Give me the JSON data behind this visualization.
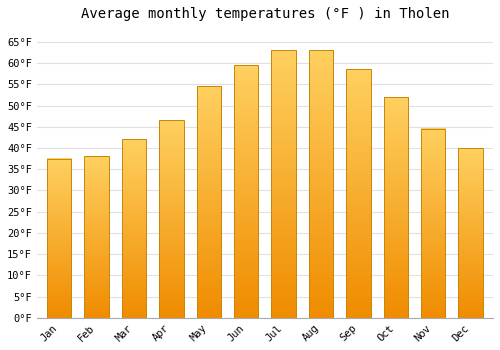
{
  "months": [
    "Jan",
    "Feb",
    "Mar",
    "Apr",
    "May",
    "Jun",
    "Jul",
    "Aug",
    "Sep",
    "Oct",
    "Nov",
    "Dec"
  ],
  "values": [
    37.5,
    38.0,
    42.0,
    46.5,
    54.5,
    59.5,
    63.0,
    63.0,
    58.5,
    52.0,
    44.5,
    40.0
  ],
  "bar_color_top": "#FFB833",
  "bar_color_bottom": "#F59A00",
  "bar_edge_color": "#C8860A",
  "title": "Average monthly temperatures (°F ) in Tholen",
  "ylim": [
    0,
    68
  ],
  "yticks": [
    0,
    5,
    10,
    15,
    20,
    25,
    30,
    35,
    40,
    45,
    50,
    55,
    60,
    65
  ],
  "background_color": "#ffffff",
  "grid_color": "#e0e0e0",
  "title_fontsize": 10,
  "tick_fontsize": 7.5
}
